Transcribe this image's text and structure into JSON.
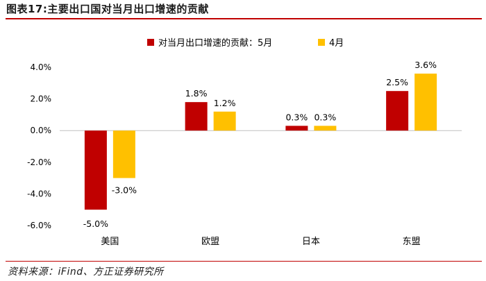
{
  "figure_title": "图表17:主要出口国对当月出口增速的贡献",
  "source": "资料来源：iFind、方正证券研究所",
  "colors": {
    "series_1": "#c00000",
    "series_2": "#ffc000",
    "rule": "#c00000"
  },
  "chart_data": {
    "type": "bar",
    "categories": [
      "美国",
      "欧盟",
      "日本",
      "东盟"
    ],
    "series": [
      {
        "name": "对当月出口增速的贡献：5月",
        "values": [
          -5.0,
          1.8,
          0.3,
          2.5
        ],
        "labels": [
          "-5.0%",
          "1.8%",
          "0.3%",
          "2.5%"
        ]
      },
      {
        "name": "4月",
        "values": [
          -3.0,
          1.2,
          0.3,
          3.6
        ],
        "labels": [
          "-3.0%",
          "1.2%",
          "0.3%",
          "3.6%"
        ]
      }
    ],
    "ylim": [
      -6.0,
      4.0
    ],
    "yticks": [
      4.0,
      2.0,
      0.0,
      -2.0,
      -4.0,
      -6.0
    ],
    "ytick_labels": [
      "4.0%",
      "2.0%",
      "0.0%",
      "-2.0%",
      "-4.0%",
      "-6.0%"
    ],
    "grid": false,
    "legend_position": "top-center"
  }
}
